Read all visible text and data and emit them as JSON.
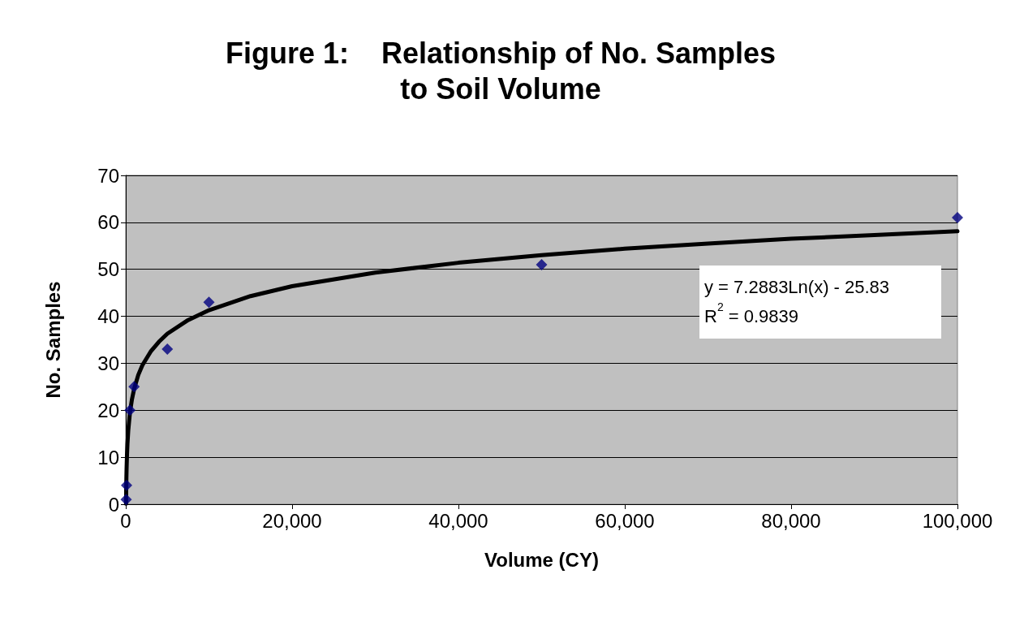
{
  "chart_data": {
    "type": "scatter",
    "title": "Figure 1:    Relationship of No. Samples\nto Soil Volume",
    "xlabel": "Volume (CY)",
    "ylabel": "No. Samples",
    "annotations": [
      "y = 7.2883Ln(x) - 25.83",
      "R$^{2}$ = 0.9839"
    ],
    "series": [
      {
        "type": "scatter",
        "color": "#000080",
        "marker": "diamond",
        "x": [
          50,
          100,
          500,
          1000,
          5000,
          10000,
          50000,
          100000
        ],
        "values": [
          1,
          4,
          20,
          25,
          33,
          43,
          51,
          61
        ]
      },
      {
        "type": "line",
        "color": "#000000",
        "marker": "none",
        "line_style": "solid",
        "x": [
          35,
          50,
          75,
          100,
          150,
          200,
          300,
          500,
          750,
          1000,
          1500,
          2000,
          3000,
          4000,
          5000,
          7500,
          10000,
          15000,
          20000,
          30000,
          40000,
          50000,
          60000,
          70000,
          80000,
          90000,
          100000
        ],
        "values": [
          0.1,
          2.7,
          5.6,
          7.7,
          10.7,
          12.8,
          15.7,
          19.5,
          22.4,
          24.5,
          27.5,
          29.6,
          32.5,
          34.6,
          36.3,
          39.2,
          41.3,
          44.3,
          46.4,
          49.3,
          51.4,
          53.0,
          54.4,
          55.5,
          56.5,
          57.3,
          58.1
        ]
      }
    ],
    "xlim": [
      0,
      100000
    ],
    "xticks": [
      0,
      {
        "value": 20000,
        "label": "20,000"
      },
      {
        "value": 40000,
        "label": "40,000"
      },
      {
        "value": 60000,
        "label": "60,000"
      },
      {
        "value": 80000,
        "label": "80,000"
      },
      {
        "value": 100000,
        "label": "100,000"
      }
    ],
    "ylim": [
      0,
      70
    ],
    "yticks": [
      0,
      10,
      20,
      30,
      40,
      50,
      60,
      70
    ],
    "grid": "y"
  }
}
